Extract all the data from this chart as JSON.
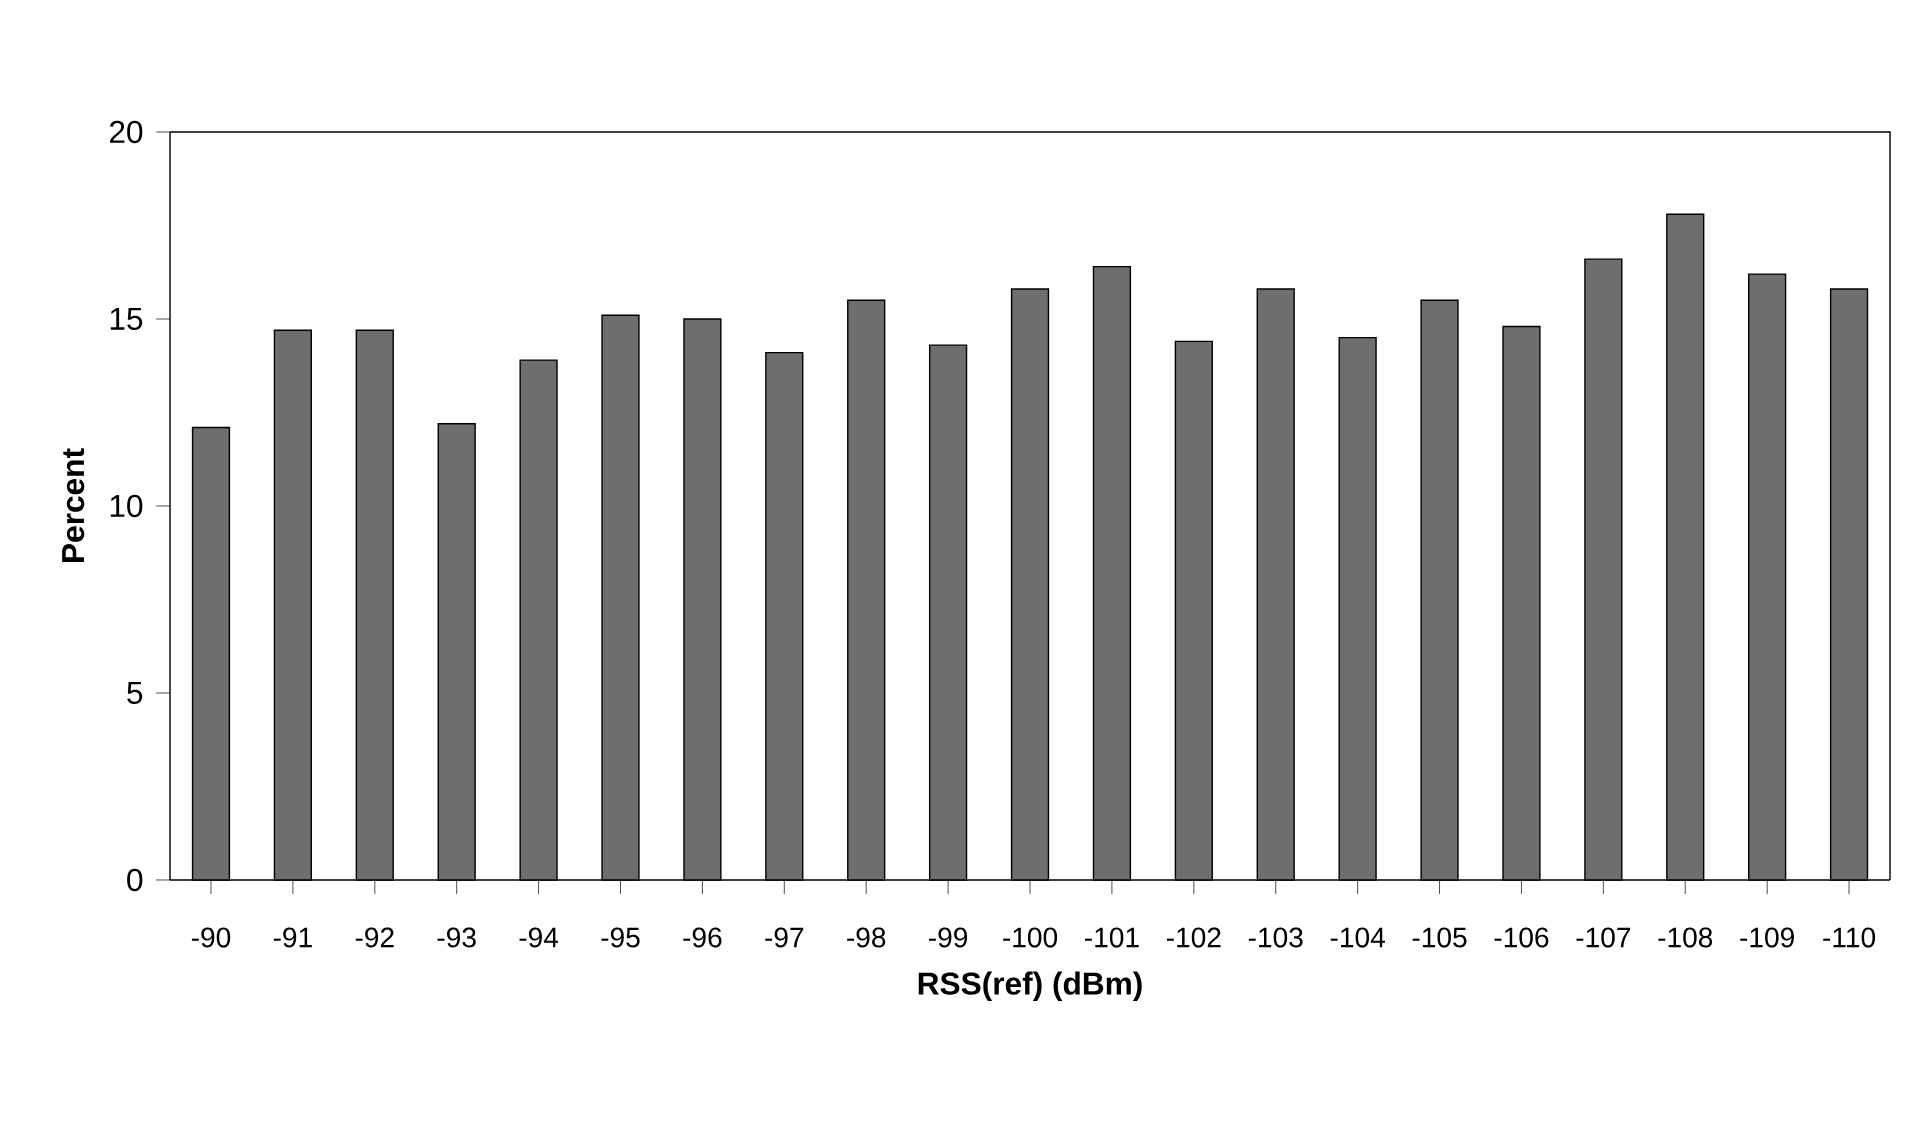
{
  "chart_data": {
    "type": "bar",
    "xlabel": "RSS(ref) (dBm)",
    "ylabel": "Percent",
    "categories": [
      "-90",
      "-91",
      "-92",
      "-93",
      "-94",
      "-95",
      "-96",
      "-97",
      "-98",
      "-99",
      "-100",
      "-101",
      "-102",
      "-103",
      "-104",
      "-105",
      "-106",
      "-107",
      "-108",
      "-109",
      "-110"
    ],
    "values": [
      12.1,
      14.7,
      14.7,
      12.2,
      13.9,
      15.1,
      15.0,
      14.1,
      15.5,
      14.3,
      15.8,
      16.4,
      14.4,
      15.8,
      14.5,
      15.5,
      14.8,
      16.6,
      17.8,
      16.2,
      15.8
    ],
    "color": "#6e6e6e",
    "ylim": [
      0,
      20
    ],
    "yticks": [
      0,
      5,
      10,
      15,
      20
    ]
  }
}
